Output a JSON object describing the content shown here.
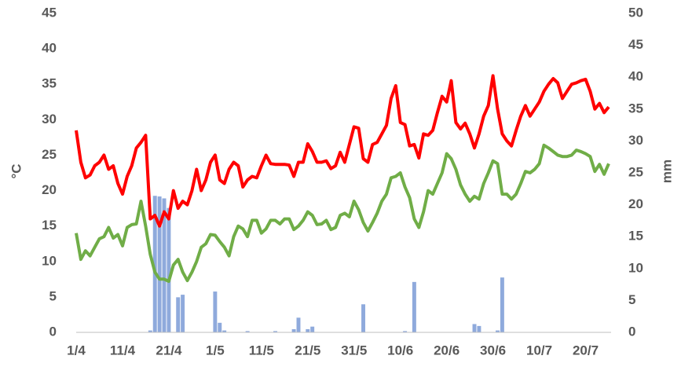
{
  "chart_data": {
    "type": "line",
    "y_label": "°C",
    "y2_label": "mm",
    "categories": [
      "1/4",
      null,
      null,
      null,
      null,
      null,
      null,
      null,
      null,
      null,
      "11/4",
      null,
      null,
      null,
      null,
      null,
      null,
      null,
      null,
      null,
      "21/4",
      null,
      null,
      null,
      null,
      null,
      null,
      null,
      null,
      null,
      "1/5",
      null,
      null,
      null,
      null,
      null,
      null,
      null,
      null,
      null,
      "11/5",
      null,
      null,
      null,
      null,
      null,
      null,
      null,
      null,
      null,
      "21/5",
      null,
      null,
      null,
      null,
      null,
      null,
      null,
      null,
      null,
      "31/5",
      null,
      null,
      null,
      null,
      null,
      null,
      null,
      null,
      null,
      "10/6",
      null,
      null,
      null,
      null,
      null,
      null,
      null,
      null,
      null,
      "20/6",
      null,
      null,
      null,
      null,
      null,
      null,
      null,
      null,
      null,
      "30/6",
      null,
      null,
      null,
      null,
      null,
      null,
      null,
      null,
      null,
      "10/7",
      null,
      null,
      null,
      null,
      null,
      null,
      null,
      null,
      null,
      "20/7",
      null,
      null,
      null,
      null,
      null
    ],
    "ylim": [
      0,
      45
    ],
    "yticks": [
      0,
      5,
      10,
      15,
      20,
      25,
      30,
      35,
      40,
      45
    ],
    "y2lim": [
      0,
      50
    ],
    "y2ticks": [
      0,
      5,
      10,
      15,
      20,
      25,
      30,
      35,
      40,
      45,
      50
    ],
    "series": [
      {
        "type": "bar",
        "axis": "y2",
        "color": "#8faadc",
        "values": [
          0,
          0,
          0,
          0,
          0,
          0,
          0,
          0,
          0,
          0,
          0,
          0,
          0,
          0,
          0,
          0,
          0.3,
          21.4,
          21.3,
          21,
          19.5,
          0,
          5.5,
          5.9,
          0,
          0,
          0,
          0,
          0,
          0,
          6.4,
          1.5,
          0.3,
          0,
          0,
          0,
          0,
          0.2,
          0,
          0,
          0,
          0,
          0,
          0.2,
          0,
          0,
          0,
          0.5,
          2.3,
          0,
          0.5,
          0.9,
          0,
          0,
          0,
          0,
          0,
          0,
          0,
          0,
          0,
          0,
          4.4,
          0,
          0,
          0,
          0,
          0,
          0,
          0,
          0,
          0.2,
          0,
          7.9,
          0,
          0,
          0,
          0,
          0,
          0,
          0,
          0,
          0,
          0,
          0,
          0,
          1.3,
          1,
          0,
          0,
          0,
          0.3,
          8.6,
          0,
          0,
          0,
          0,
          0,
          0,
          0,
          0,
          0,
          0,
          0,
          0,
          0,
          0,
          0,
          0,
          0,
          0,
          0,
          0,
          0,
          0,
          0
        ]
      },
      {
        "type": "line",
        "color": "#ff0000",
        "values": [
          28.5,
          24,
          21.8,
          22.2,
          23.5,
          24,
          25,
          23,
          23.5,
          21,
          19.5,
          22,
          23.5,
          26,
          26.8,
          27.8,
          16,
          16.5,
          15,
          17,
          16,
          20,
          17.5,
          18.5,
          18,
          20,
          23,
          20,
          21.5,
          24,
          25,
          21.5,
          21,
          23,
          24,
          23.5,
          20.5,
          21.5,
          22,
          21.8,
          23.5,
          25,
          23.8,
          23.7,
          23.7,
          23.7,
          23.6,
          22,
          24,
          24,
          26.6,
          25.5,
          24,
          24,
          24.2,
          23.1,
          23.5,
          25.4,
          24,
          26.5,
          29,
          28.8,
          24.5,
          24,
          26.5,
          26.8,
          28,
          29.2,
          33,
          34.8,
          29.6,
          29.3,
          26.3,
          26.5,
          24.6,
          28,
          27.8,
          28.5,
          31,
          33.3,
          32.5,
          35.5,
          29.6,
          28.7,
          29.5,
          28,
          26,
          28,
          30.5,
          32,
          36.2,
          31.5,
          28,
          27,
          26.3,
          28.5,
          30.5,
          32,
          30.5,
          31.5,
          32.5,
          34,
          35,
          35.8,
          35.2,
          33,
          34,
          35,
          35.2,
          35.5,
          35.7,
          34,
          31.5,
          32.3,
          31,
          31.8
        ]
      },
      {
        "type": "line",
        "color": "#70ad47",
        "values": [
          14,
          10.3,
          11.5,
          10.8,
          12,
          13.2,
          13.5,
          14.8,
          13.3,
          13.8,
          12.2,
          14.8,
          15.2,
          15.3,
          18.5,
          15,
          11,
          8.5,
          7.5,
          7.5,
          7.2,
          9.5,
          10.3,
          8.5,
          7.3,
          8.5,
          10,
          12,
          12.5,
          13.8,
          13.7,
          12.8,
          12,
          10.8,
          13.5,
          15,
          14.6,
          13.5,
          15.8,
          15.8,
          14,
          14.6,
          15.8,
          15.8,
          15.3,
          16,
          16,
          14.5,
          15,
          15.8,
          17,
          16.5,
          15.2,
          15.3,
          15.8,
          14.5,
          14.8,
          16.5,
          16.8,
          16.3,
          18.5,
          17.3,
          15.5,
          14.3,
          15.5,
          16.8,
          18.5,
          19.5,
          21.8,
          22,
          22.5,
          20.5,
          19,
          16,
          14.8,
          17,
          20,
          19.5,
          21,
          22.5,
          25.2,
          24.5,
          23,
          20.8,
          19.5,
          18.5,
          19.2,
          18.8,
          21,
          22.5,
          24.2,
          23.8,
          19.5,
          19.5,
          18.8,
          19.5,
          21,
          22.7,
          22.5,
          23,
          23.8,
          26.4,
          26,
          25.5,
          25,
          24.8,
          24.8,
          25,
          25.7,
          25.5,
          25.2,
          24.8,
          22.7,
          23.7,
          22.3,
          23.8
        ]
      }
    ]
  }
}
